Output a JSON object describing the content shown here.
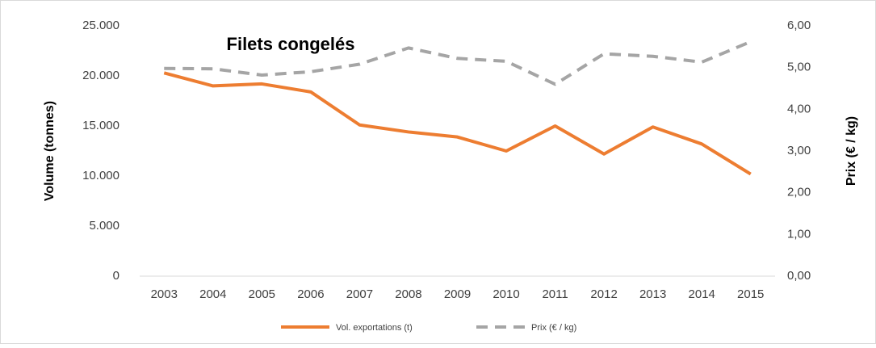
{
  "chart_data": {
    "type": "line",
    "title": "Filets congelés",
    "y_label": "Volume (tonnes)",
    "y2_label": "Prix (€ / kg)",
    "categories": [
      "2003",
      "2004",
      "2005",
      "2006",
      "2007",
      "2008",
      "2009",
      "2010",
      "2011",
      "2012",
      "2013",
      "2014",
      "2015"
    ],
    "series": [
      {
        "name": "Vol. exportations (t)",
        "color": "#ED7D31",
        "dash": false,
        "values": [
          20300,
          19000,
          19200,
          18400,
          15100,
          14400,
          13900,
          12500,
          15000,
          12200,
          14900,
          13200,
          10200
        ]
      },
      {
        "name": "Prix (€ / kg)",
        "color": "#A5A5A5",
        "dash": true,
        "axis": "y2",
        "values": [
          4.98,
          4.97,
          4.82,
          4.9,
          5.08,
          5.47,
          5.22,
          5.15,
          4.6,
          5.33,
          5.27,
          5.13,
          5.62
        ]
      }
    ],
    "ylim": [
      0,
      25000
    ],
    "yticks": [
      0,
      {
        "value": 5000,
        "label": "5.000"
      },
      {
        "value": 10000,
        "label": "10.000"
      },
      {
        "value": 15000,
        "label": "15.000"
      },
      {
        "value": 20000,
        "label": "20.000"
      },
      {
        "value": 25000,
        "label": "25.000"
      }
    ],
    "y2lim": [
      0,
      6
    ],
    "y2ticks": [
      {
        "value": 0,
        "label": "0,00"
      },
      {
        "value": 1,
        "label": "1,00"
      },
      {
        "value": 2,
        "label": "2,00"
      },
      {
        "value": 3,
        "label": "3,00"
      },
      {
        "value": 4,
        "label": "4,00"
      },
      {
        "value": 5,
        "label": "5,00"
      },
      {
        "value": 6,
        "label": "6,00"
      }
    ],
    "grid": false,
    "legend": "bottom"
  }
}
